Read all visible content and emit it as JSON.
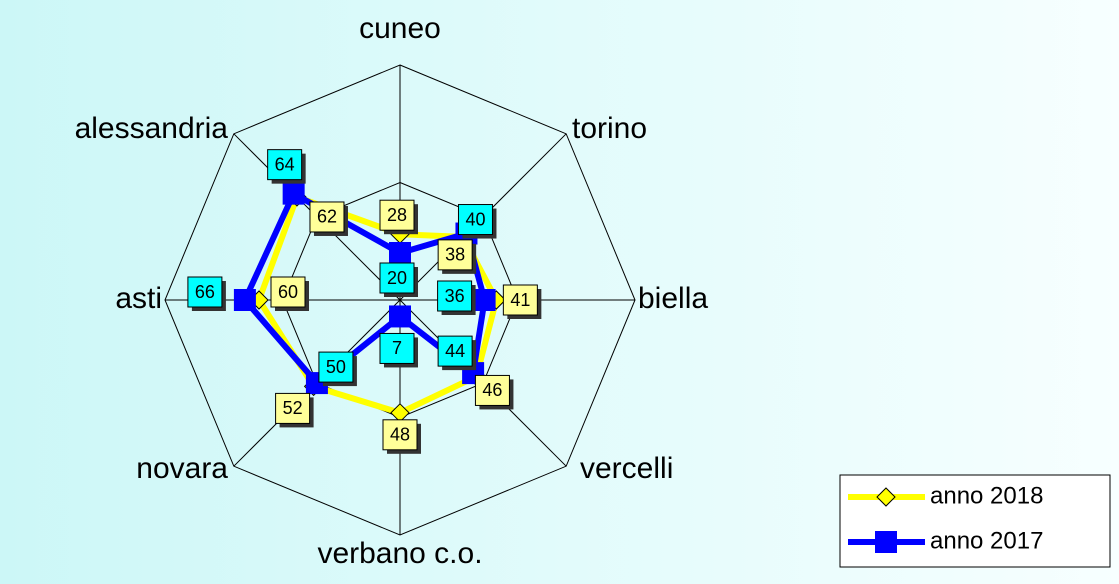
{
  "chart_data": {
    "type": "radar",
    "categories": [
      "cuneo",
      "torino",
      "biella",
      "vercelli",
      "verbano c.o.",
      "novara",
      "asti",
      "alessandria"
    ],
    "ylim": [
      0,
      100
    ],
    "yticks": [
      0,
      50,
      100
    ],
    "grid": true,
    "legend": "lower right",
    "series": [
      {
        "name": "anno 2018",
        "color": "#ffff00",
        "marker": "diamond",
        "label_color": "#ffff99",
        "values": [
          28,
          38,
          41,
          46,
          48,
          52,
          60,
          62
        ]
      },
      {
        "name": "anno 2017",
        "color": "#0000ff",
        "marker": "square",
        "label_color": "#00ffff",
        "values": [
          20,
          40,
          36,
          44,
          7,
          50,
          66,
          64
        ]
      }
    ]
  }
}
